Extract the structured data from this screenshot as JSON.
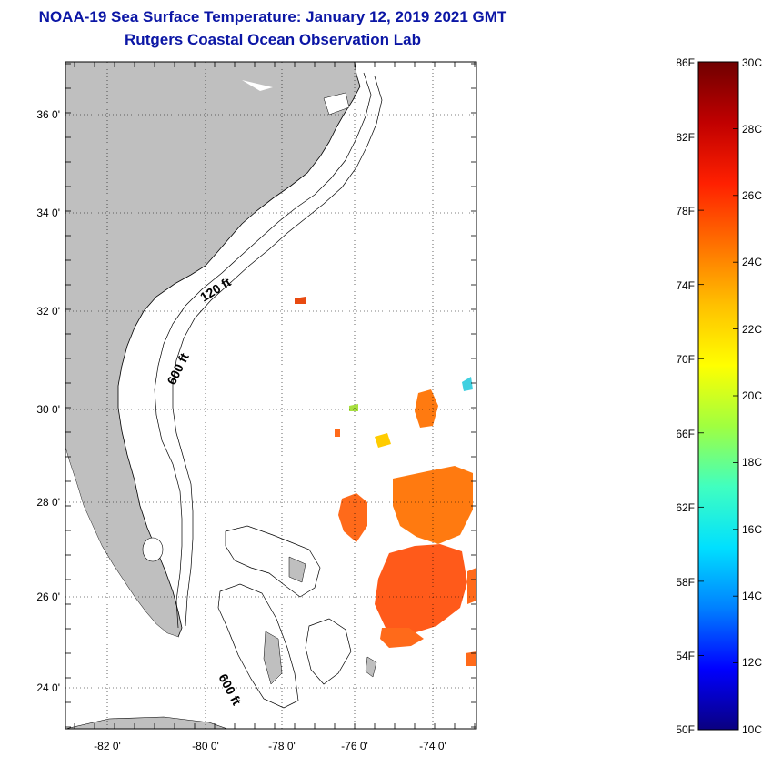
{
  "header": {
    "title": "NOAA-19 Sea Surface Temperature:  January 12, 2019 2021 GMT",
    "subtitle": "Rutgers Coastal Ocean Observation Lab"
  },
  "map": {
    "latitude_labels": [
      "36 0'",
      "34 0'",
      "32 0'",
      "30 0'",
      "28 0'",
      "26 0'",
      "24 0'"
    ],
    "longitude_labels": [
      "-82 0'",
      "-80 0'",
      "-78 0'",
      "-76 0'",
      "-74 0'"
    ],
    "isobath_labels": [
      "120 ft",
      "600 ft",
      "600 ft"
    ],
    "land_color": "#bfbfbf",
    "ocean_color": "#ffffff",
    "sst_patch_colors": [
      "#ff6a1a",
      "#ff7a10",
      "#ff5a1a",
      "#e84a10",
      "#ffcc00",
      "#a8e040",
      "#40d0e0"
    ]
  },
  "colorbar": {
    "fahrenheit_labels": [
      "86F",
      "82F",
      "78F",
      "74F",
      "70F",
      "66F",
      "62F",
      "58F",
      "54F",
      "50F"
    ],
    "celsius_labels": [
      "30C",
      "28C",
      "26C",
      "24C",
      "22C",
      "20C",
      "18C",
      "16C",
      "14C",
      "12C",
      "10C"
    ],
    "range_fahrenheit": [
      50,
      86
    ],
    "range_celsius": [
      10,
      30
    ],
    "colors": [
      "#0a0080",
      "#0000ff",
      "#0080ff",
      "#00e0ff",
      "#40ffc0",
      "#a0ff40",
      "#ffff00",
      "#ffc000",
      "#ff7000",
      "#ff2000",
      "#c00000",
      "#700000"
    ]
  }
}
